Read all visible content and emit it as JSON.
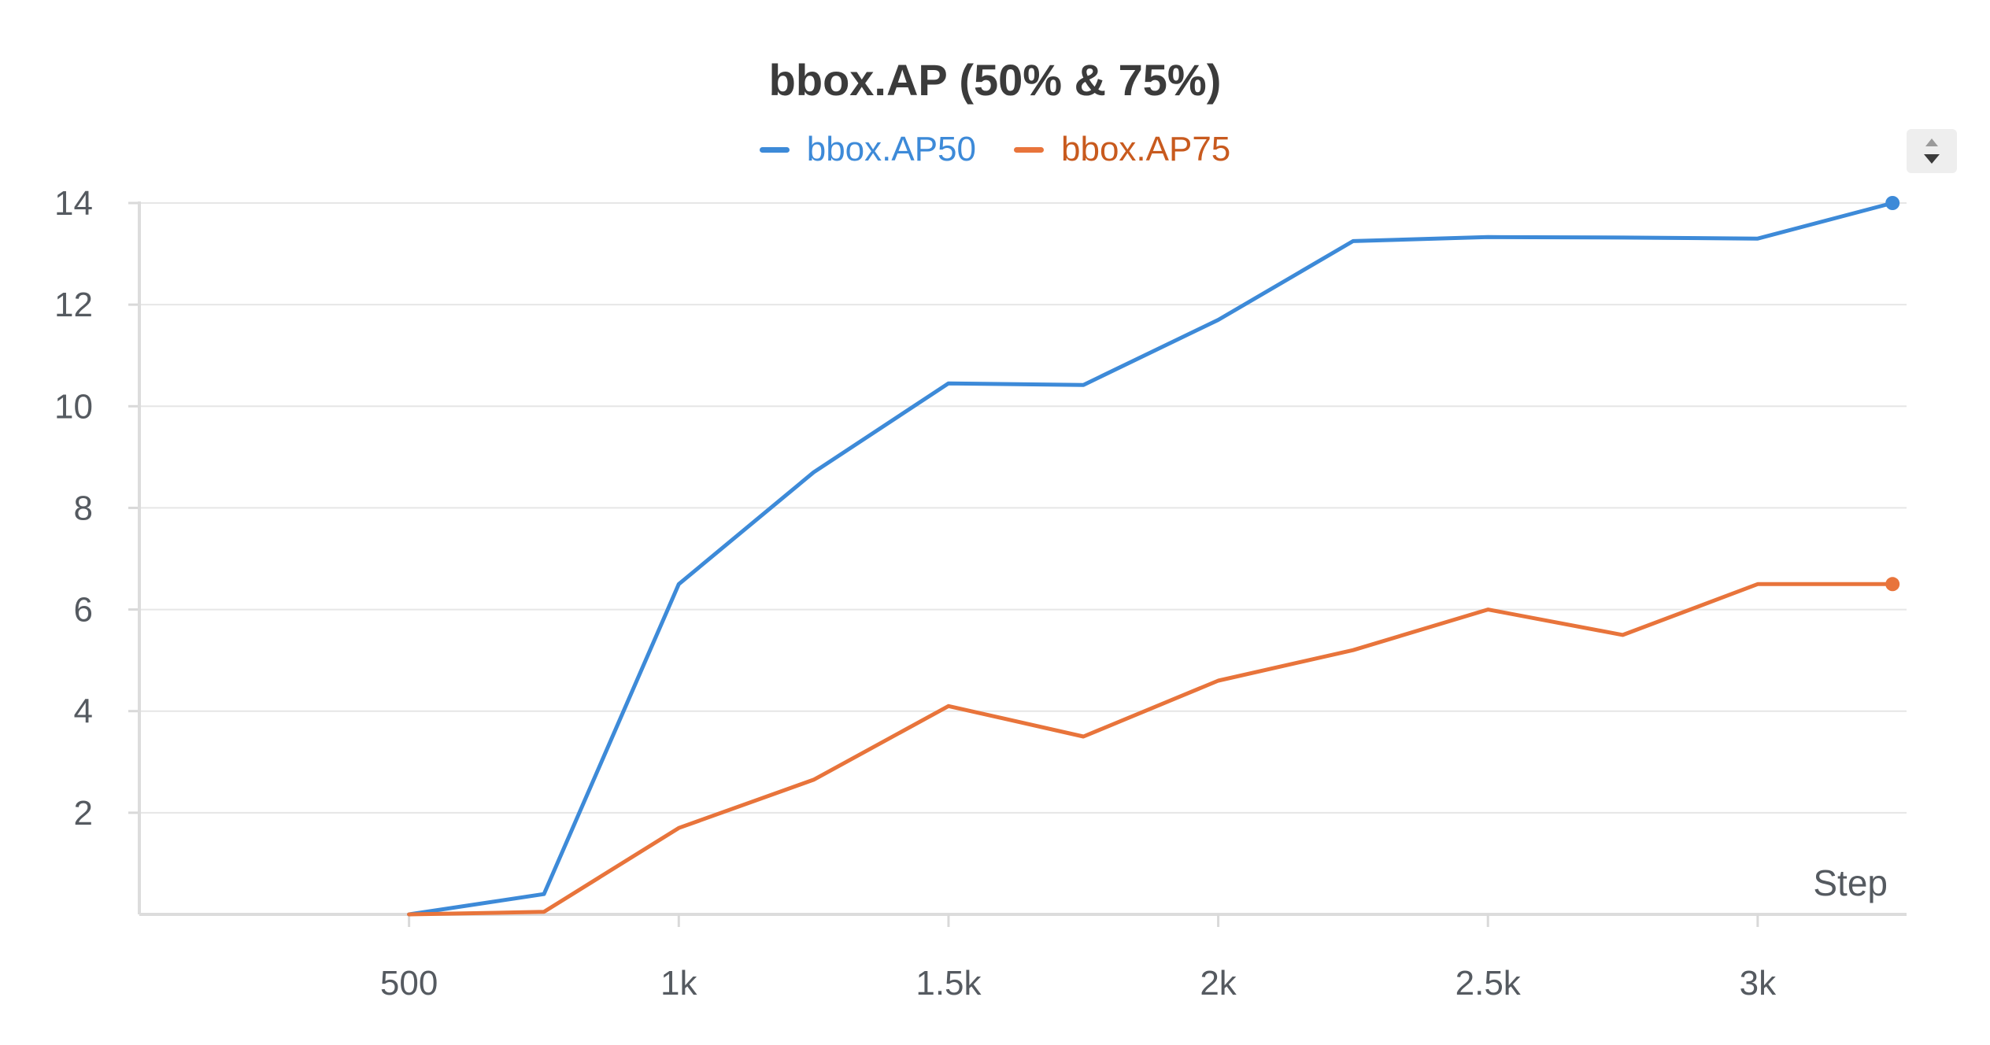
{
  "chart_data": {
    "type": "line",
    "title": "bbox.AP (50% & 75%)",
    "xlabel": "Step",
    "ylabel": "",
    "xlim": [
      0,
      3276
    ],
    "ylim": [
      0,
      14
    ],
    "x_ticks": [
      500,
      1000,
      1500,
      2000,
      2500,
      3000
    ],
    "x_tick_labels": [
      "500",
      "1k",
      "1.5k",
      "2k",
      "2.5k",
      "3k"
    ],
    "y_ticks": [
      2,
      4,
      6,
      8,
      10,
      12,
      14
    ],
    "y_tick_labels": [
      "2",
      "4",
      "6",
      "8",
      "10",
      "12",
      "14"
    ],
    "grid": true,
    "legend_position": "top-center",
    "x": [
      500,
      750,
      1000,
      1250,
      1500,
      1750,
      2000,
      2250,
      2500,
      2750,
      3000,
      3250
    ],
    "series": [
      {
        "name": "bbox.AP50",
        "color": "#3d8ad8",
        "values": [
          0.0,
          0.4,
          6.5,
          8.7,
          10.45,
          10.42,
          11.7,
          13.25,
          13.33,
          13.32,
          13.3,
          14.0
        ]
      },
      {
        "name": "bbox.AP75",
        "color": "#e8743b",
        "values": [
          0.0,
          0.05,
          1.7,
          2.65,
          4.1,
          3.5,
          4.6,
          5.2,
          6.0,
          5.5,
          6.5,
          6.5
        ]
      }
    ],
    "legend_text_colors": [
      "#3d8ad8",
      "#c85a1e"
    ]
  },
  "controls": {
    "sort_icon": "sort-up-down-icon"
  }
}
